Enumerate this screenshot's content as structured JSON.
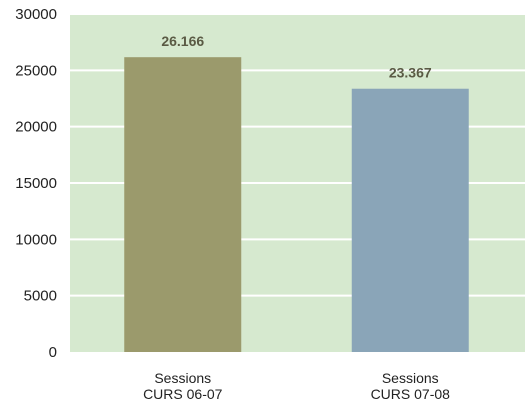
{
  "chart_data": {
    "type": "bar",
    "categories": [
      [
        "Sessions",
        "CURS 06-07"
      ],
      [
        "Sessions",
        "CURS 07-08"
      ]
    ],
    "values": [
      26166,
      23367
    ],
    "value_labels": [
      "26.166",
      "23.367"
    ],
    "ylim": [
      0,
      30000
    ],
    "yticks": [
      0,
      5000,
      10000,
      15000,
      20000,
      25000,
      30000
    ],
    "grid": true,
    "colors": {
      "plot_background": "#d6e9cf",
      "gridline": "#ffffff",
      "bars": [
        "#9b9a6c",
        "#8aa5b8"
      ],
      "data_label": "#5a5a44"
    }
  }
}
